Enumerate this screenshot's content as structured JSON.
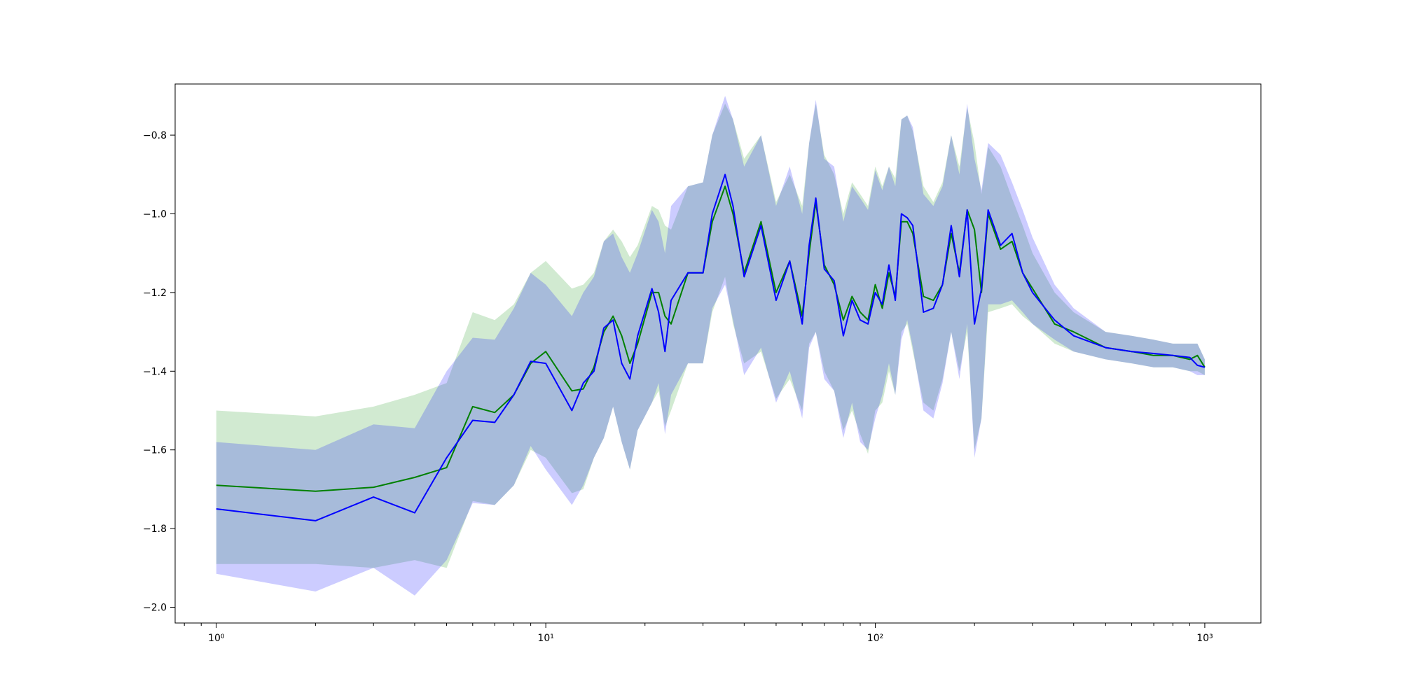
{
  "chart_data": {
    "type": "area",
    "title": "",
    "xlabel": "",
    "ylabel": "",
    "xscale": "log",
    "xlim": [
      0.75,
      1480
    ],
    "ylim": [
      -2.04,
      -0.67
    ],
    "grid": false,
    "legend": "none",
    "x_ticks": [
      {
        "value": 1,
        "label": "10⁰"
      },
      {
        "value": 10,
        "label": "10¹"
      },
      {
        "value": 100,
        "label": "10²"
      },
      {
        "value": 1000,
        "label": "10³"
      }
    ],
    "y_ticks": [
      {
        "value": -0.8,
        "label": "−0.8"
      },
      {
        "value": -1.0,
        "label": "−1.0"
      },
      {
        "value": -1.2,
        "label": "−1.2"
      },
      {
        "value": -1.4,
        "label": "−1.4"
      },
      {
        "value": -1.6,
        "label": "−1.6"
      },
      {
        "value": -1.8,
        "label": "−1.8"
      },
      {
        "value": -2.0,
        "label": "−2.0"
      }
    ],
    "series": [
      {
        "color": "#008000",
        "band_color": "#2ca02c",
        "band_opacity": 0.22,
        "x": [
          1,
          2,
          3,
          4,
          5,
          6,
          7,
          8,
          9,
          10,
          12,
          13,
          14,
          15,
          16,
          17,
          18,
          19,
          21,
          22,
          23,
          24,
          27,
          30,
          32,
          35,
          37,
          40,
          45,
          50,
          55,
          60,
          63,
          66,
          70,
          75,
          80,
          85,
          90,
          95,
          100,
          105,
          110,
          115,
          120,
          125,
          130,
          140,
          150,
          160,
          170,
          180,
          190,
          200,
          210,
          220,
          240,
          260,
          280,
          300,
          350,
          400,
          500,
          600,
          700,
          800,
          900,
          950,
          1000
        ],
        "y": [
          -1.69,
          -1.705,
          -1.695,
          -1.67,
          -1.645,
          -1.49,
          -1.505,
          -1.46,
          -1.38,
          -1.35,
          -1.45,
          -1.445,
          -1.39,
          -1.3,
          -1.26,
          -1.31,
          -1.38,
          -1.33,
          -1.2,
          -1.2,
          -1.26,
          -1.28,
          -1.15,
          -1.15,
          -1.02,
          -0.93,
          -1.0,
          -1.15,
          -1.02,
          -1.2,
          -1.12,
          -1.26,
          -1.1,
          -0.97,
          -1.13,
          -1.18,
          -1.27,
          -1.21,
          -1.25,
          -1.27,
          -1.18,
          -1.24,
          -1.15,
          -1.21,
          -1.02,
          -1.02,
          -1.05,
          -1.21,
          -1.22,
          -1.18,
          -1.05,
          -1.15,
          -0.99,
          -1.04,
          -1.2,
          -1.0,
          -1.09,
          -1.07,
          -1.15,
          -1.19,
          -1.28,
          -1.3,
          -1.34,
          -1.35,
          -1.36,
          -1.36,
          -1.37,
          -1.36,
          -1.39
        ],
        "lower": [
          -1.89,
          -1.89,
          -1.9,
          -1.88,
          -1.9,
          -1.73,
          -1.74,
          -1.69,
          -1.6,
          -1.62,
          -1.71,
          -1.7,
          -1.62,
          -1.57,
          -1.49,
          -1.58,
          -1.65,
          -1.55,
          -1.48,
          -1.45,
          -1.54,
          -1.5,
          -1.38,
          -1.38,
          -1.25,
          -1.16,
          -1.28,
          -1.38,
          -1.35,
          -1.47,
          -1.42,
          -1.5,
          -1.33,
          -1.3,
          -1.4,
          -1.45,
          -1.55,
          -1.5,
          -1.56,
          -1.61,
          -1.5,
          -1.48,
          -1.4,
          -1.46,
          -1.3,
          -1.28,
          -1.35,
          -1.48,
          -1.5,
          -1.42,
          -1.3,
          -1.4,
          -1.3,
          -1.6,
          -1.52,
          -1.25,
          -1.24,
          -1.23,
          -1.26,
          -1.28,
          -1.33,
          -1.35,
          -1.37,
          -1.38,
          -1.39,
          -1.39,
          -1.4,
          -1.4,
          -1.41
        ],
        "upper": [
          -1.5,
          -1.515,
          -1.49,
          -1.46,
          -1.43,
          -1.25,
          -1.27,
          -1.23,
          -1.15,
          -1.12,
          -1.19,
          -1.18,
          -1.15,
          -1.07,
          -1.04,
          -1.07,
          -1.11,
          -1.08,
          -0.98,
          -0.99,
          -1.03,
          -1.04,
          -0.93,
          -0.92,
          -0.8,
          -0.72,
          -0.76,
          -0.86,
          -0.8,
          -0.97,
          -0.9,
          -0.98,
          -0.82,
          -0.72,
          -0.85,
          -0.9,
          -1.0,
          -0.92,
          -0.95,
          -0.98,
          -0.88,
          -0.93,
          -0.88,
          -0.91,
          -0.76,
          -0.75,
          -0.79,
          -0.93,
          -0.97,
          -0.92,
          -0.8,
          -0.88,
          -0.73,
          -0.82,
          -0.95,
          -0.83,
          -0.88,
          -0.96,
          -1.03,
          -1.1,
          -1.2,
          -1.25,
          -1.3,
          -1.31,
          -1.32,
          -1.33,
          -1.33,
          -1.33,
          -1.37
        ]
      },
      {
        "color": "#0000ff",
        "band_color": "#0000ff",
        "band_opacity": 0.2,
        "x": [
          1,
          2,
          3,
          4,
          5,
          6,
          7,
          8,
          9,
          10,
          12,
          13,
          14,
          15,
          16,
          17,
          18,
          19,
          21,
          22,
          23,
          24,
          27,
          30,
          32,
          35,
          37,
          40,
          45,
          50,
          55,
          60,
          63,
          66,
          70,
          75,
          80,
          85,
          90,
          95,
          100,
          105,
          110,
          115,
          120,
          125,
          130,
          140,
          150,
          160,
          170,
          180,
          190,
          200,
          210,
          220,
          240,
          260,
          280,
          300,
          350,
          400,
          500,
          600,
          700,
          800,
          900,
          950,
          1000
        ],
        "y": [
          -1.75,
          -1.78,
          -1.72,
          -1.76,
          -1.62,
          -1.525,
          -1.53,
          -1.46,
          -1.375,
          -1.38,
          -1.5,
          -1.43,
          -1.4,
          -1.29,
          -1.27,
          -1.38,
          -1.42,
          -1.31,
          -1.19,
          -1.25,
          -1.35,
          -1.22,
          -1.15,
          -1.15,
          -1.0,
          -0.9,
          -0.98,
          -1.16,
          -1.03,
          -1.22,
          -1.12,
          -1.28,
          -1.08,
          -0.96,
          -1.14,
          -1.17,
          -1.31,
          -1.22,
          -1.27,
          -1.28,
          -1.2,
          -1.23,
          -1.13,
          -1.22,
          -1.0,
          -1.01,
          -1.03,
          -1.25,
          -1.24,
          -1.18,
          -1.03,
          -1.16,
          -0.99,
          -1.28,
          -1.19,
          -0.99,
          -1.08,
          -1.05,
          -1.15,
          -1.2,
          -1.27,
          -1.31,
          -1.34,
          -1.35,
          -1.355,
          -1.36,
          -1.365,
          -1.385,
          -1.39
        ],
        "lower": [
          -1.915,
          -1.96,
          -1.9,
          -1.97,
          -1.88,
          -1.735,
          -1.74,
          -1.69,
          -1.59,
          -1.65,
          -1.74,
          -1.69,
          -1.62,
          -1.57,
          -1.49,
          -1.58,
          -1.65,
          -1.55,
          -1.48,
          -1.43,
          -1.56,
          -1.46,
          -1.38,
          -1.38,
          -1.24,
          -1.18,
          -1.27,
          -1.41,
          -1.34,
          -1.48,
          -1.4,
          -1.52,
          -1.34,
          -1.3,
          -1.42,
          -1.45,
          -1.57,
          -1.48,
          -1.58,
          -1.6,
          -1.52,
          -1.46,
          -1.38,
          -1.46,
          -1.32,
          -1.27,
          -1.34,
          -1.5,
          -1.52,
          -1.43,
          -1.3,
          -1.42,
          -1.28,
          -1.62,
          -1.52,
          -1.23,
          -1.23,
          -1.22,
          -1.25,
          -1.28,
          -1.32,
          -1.35,
          -1.37,
          -1.38,
          -1.39,
          -1.39,
          -1.4,
          -1.41,
          -1.41
        ],
        "upper": [
          -1.58,
          -1.6,
          -1.535,
          -1.545,
          -1.4,
          -1.315,
          -1.32,
          -1.24,
          -1.15,
          -1.18,
          -1.26,
          -1.2,
          -1.16,
          -1.07,
          -1.05,
          -1.11,
          -1.15,
          -1.1,
          -0.99,
          -1.02,
          -1.1,
          -0.98,
          -0.93,
          -0.92,
          -0.8,
          -0.7,
          -0.76,
          -0.88,
          -0.8,
          -0.98,
          -0.88,
          -1.0,
          -0.82,
          -0.71,
          -0.86,
          -0.88,
          -1.02,
          -0.93,
          -0.96,
          -0.99,
          -0.89,
          -0.94,
          -0.88,
          -0.93,
          -0.76,
          -0.75,
          -0.78,
          -0.95,
          -0.98,
          -0.93,
          -0.8,
          -0.9,
          -0.72,
          -0.86,
          -0.94,
          -0.82,
          -0.85,
          -0.92,
          -0.99,
          -1.06,
          -1.18,
          -1.24,
          -1.3,
          -1.31,
          -1.32,
          -1.33,
          -1.33,
          -1.33,
          -1.37
        ]
      }
    ]
  }
}
